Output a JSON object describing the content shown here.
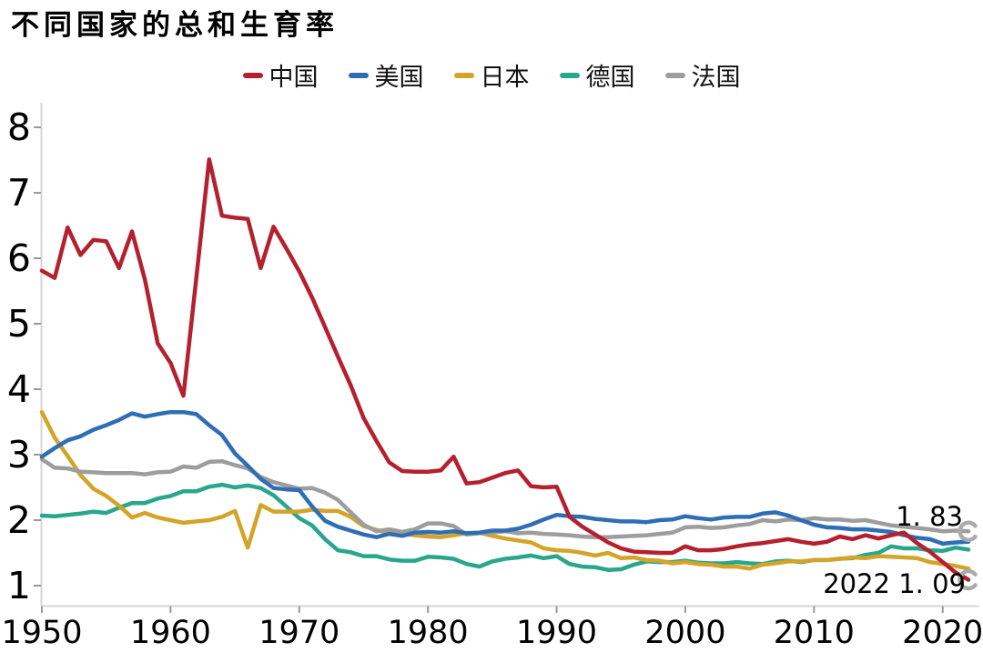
{
  "chart_data": {
    "type": "line",
    "title": "不同国家的总和生育率",
    "xlabel": "",
    "ylabel": "",
    "x_start": 1950,
    "x_end": 2022,
    "x_step": 1,
    "xticks": [
      1950,
      1960,
      1970,
      1980,
      1990,
      2000,
      2010,
      2020
    ],
    "yticks": [
      1,
      2,
      3,
      4,
      5,
      6,
      7,
      8
    ],
    "ylim": [
      1,
      8
    ],
    "grid": false,
    "legend_position": "top-center",
    "axis_color": "#d6d6d6",
    "tick_color": "#999999",
    "marker_color": "#ababab",
    "series": [
      {
        "name": "中国",
        "color": "#b5202f",
        "end_marker": true,
        "values": [
          5.81,
          5.7,
          6.47,
          6.05,
          6.28,
          6.26,
          5.85,
          6.41,
          5.68,
          4.7,
          4.4,
          3.9,
          5.7,
          7.51,
          6.65,
          6.62,
          6.6,
          5.85,
          6.48,
          6.15,
          5.8,
          5.4,
          4.95,
          4.5,
          4.06,
          3.56,
          3.21,
          2.88,
          2.75,
          2.74,
          2.74,
          2.76,
          2.97,
          2.56,
          2.58,
          2.65,
          2.72,
          2.76,
          2.52,
          2.5,
          2.51,
          2.05,
          1.9,
          1.78,
          1.66,
          1.57,
          1.52,
          1.51,
          1.5,
          1.5,
          1.6,
          1.54,
          1.54,
          1.56,
          1.6,
          1.63,
          1.65,
          1.68,
          1.71,
          1.67,
          1.64,
          1.67,
          1.75,
          1.71,
          1.77,
          1.72,
          1.77,
          1.81,
          1.65,
          1.52,
          1.36,
          1.2,
          1.09
        ]
      },
      {
        "name": "美国",
        "color": "#2f6eb5",
        "end_marker": false,
        "values": [
          2.97,
          3.1,
          3.22,
          3.28,
          3.38,
          3.45,
          3.53,
          3.63,
          3.58,
          3.62,
          3.65,
          3.65,
          3.62,
          3.45,
          3.3,
          3.02,
          2.83,
          2.63,
          2.49,
          2.47,
          2.46,
          2.21,
          1.99,
          1.9,
          1.84,
          1.78,
          1.74,
          1.79,
          1.76,
          1.81,
          1.82,
          1.81,
          1.83,
          1.8,
          1.81,
          1.84,
          1.84,
          1.87,
          1.93,
          2.01,
          2.08,
          2.06,
          2.05,
          2.02,
          2.0,
          1.98,
          1.98,
          1.97,
          2.0,
          2.01,
          2.06,
          2.03,
          2.01,
          2.04,
          2.05,
          2.05,
          2.1,
          2.12,
          2.07,
          2.0,
          1.93,
          1.89,
          1.88,
          1.86,
          1.86,
          1.84,
          1.82,
          1.77,
          1.73,
          1.71,
          1.64,
          1.66,
          1.67
        ]
      },
      {
        "name": "日本",
        "color": "#d3a428",
        "end_marker": false,
        "values": [
          3.65,
          3.26,
          2.98,
          2.69,
          2.48,
          2.37,
          2.22,
          2.04,
          2.11,
          2.04,
          2.0,
          1.96,
          1.98,
          2.0,
          2.05,
          2.14,
          1.58,
          2.23,
          2.13,
          2.13,
          2.13,
          2.16,
          2.14,
          2.14,
          2.05,
          1.91,
          1.85,
          1.8,
          1.79,
          1.77,
          1.75,
          1.74,
          1.77,
          1.8,
          1.81,
          1.76,
          1.72,
          1.69,
          1.66,
          1.57,
          1.54,
          1.53,
          1.5,
          1.46,
          1.5,
          1.42,
          1.43,
          1.39,
          1.38,
          1.34,
          1.36,
          1.33,
          1.32,
          1.29,
          1.29,
          1.26,
          1.32,
          1.34,
          1.37,
          1.37,
          1.39,
          1.39,
          1.41,
          1.43,
          1.42,
          1.45,
          1.44,
          1.43,
          1.42,
          1.36,
          1.33,
          1.3,
          1.26
        ]
      },
      {
        "name": "德国",
        "color": "#29a78c",
        "end_marker": false,
        "values": [
          2.07,
          2.06,
          2.08,
          2.1,
          2.13,
          2.11,
          2.19,
          2.26,
          2.26,
          2.33,
          2.37,
          2.44,
          2.44,
          2.51,
          2.54,
          2.5,
          2.53,
          2.49,
          2.38,
          2.21,
          2.03,
          1.92,
          1.71,
          1.54,
          1.51,
          1.45,
          1.45,
          1.4,
          1.38,
          1.38,
          1.44,
          1.43,
          1.41,
          1.33,
          1.29,
          1.37,
          1.41,
          1.43,
          1.46,
          1.42,
          1.45,
          1.33,
          1.29,
          1.28,
          1.24,
          1.25,
          1.32,
          1.37,
          1.36,
          1.36,
          1.38,
          1.35,
          1.34,
          1.34,
          1.36,
          1.34,
          1.33,
          1.37,
          1.38,
          1.36,
          1.39,
          1.39,
          1.41,
          1.42,
          1.47,
          1.5,
          1.6,
          1.57,
          1.57,
          1.54,
          1.53,
          1.58,
          1.55
        ]
      },
      {
        "name": "法国",
        "color": "#9d9d9d",
        "end_marker": true,
        "values": [
          2.93,
          2.8,
          2.79,
          2.74,
          2.73,
          2.72,
          2.72,
          2.72,
          2.7,
          2.73,
          2.74,
          2.82,
          2.8,
          2.89,
          2.9,
          2.84,
          2.79,
          2.66,
          2.58,
          2.53,
          2.48,
          2.49,
          2.42,
          2.31,
          2.12,
          1.93,
          1.83,
          1.86,
          1.82,
          1.86,
          1.95,
          1.95,
          1.91,
          1.78,
          1.8,
          1.81,
          1.83,
          1.8,
          1.81,
          1.79,
          1.78,
          1.77,
          1.75,
          1.74,
          1.74,
          1.75,
          1.76,
          1.77,
          1.79,
          1.81,
          1.89,
          1.9,
          1.88,
          1.89,
          1.92,
          1.94,
          2.0,
          1.98,
          2.01,
          2.0,
          2.03,
          2.01,
          2.01,
          1.99,
          2.0,
          1.96,
          1.92,
          1.9,
          1.88,
          1.86,
          1.83,
          1.84,
          1.83
        ]
      }
    ],
    "annotations": [
      {
        "text": "1. 83",
        "series": "法国",
        "position": "right-end-above"
      },
      {
        "text": "2022 1. 09",
        "series": "中国",
        "position": "right-end-below"
      }
    ]
  }
}
